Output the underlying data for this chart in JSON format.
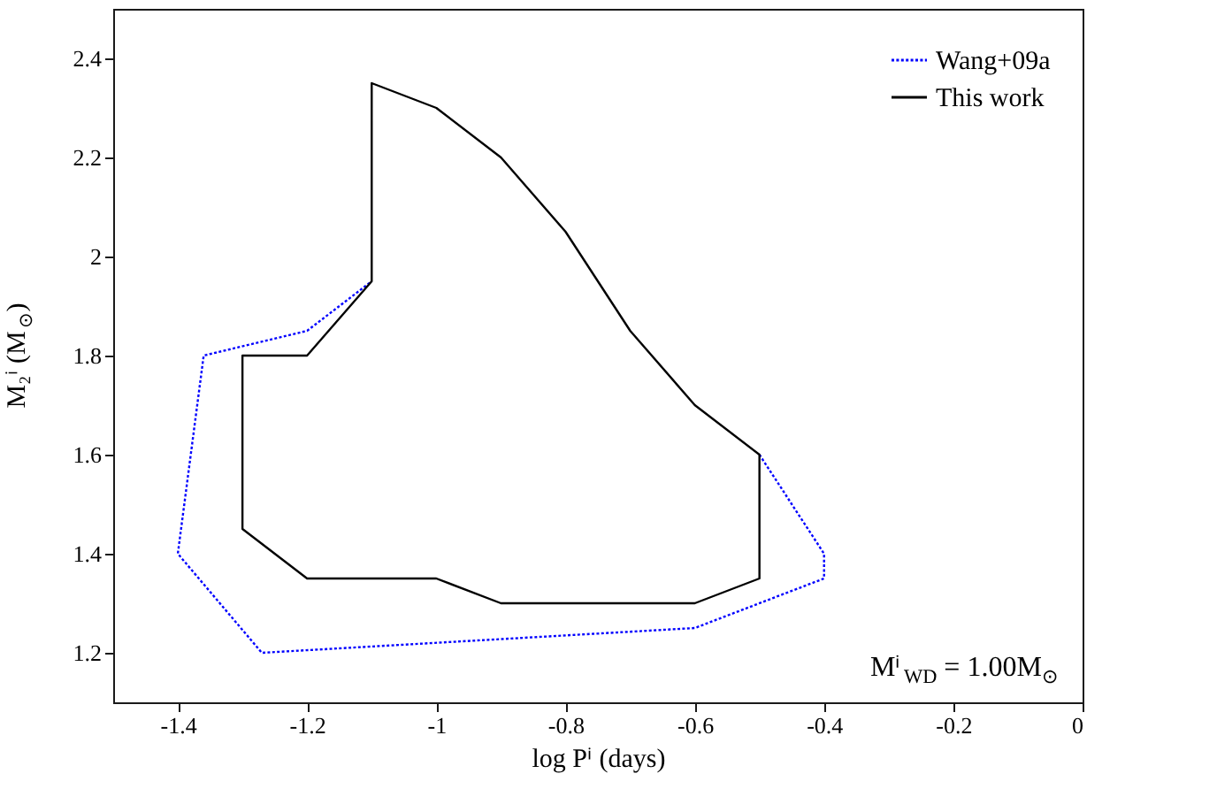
{
  "chart_data": {
    "type": "line",
    "xlabel": "log Pⁱ (days)",
    "ylabel": "M₂ⁱ (M$_{⊙}$)",
    "annotations": [
      "Mⁱ$_{WD}$ = 1.00M$_{⊙}$"
    ],
    "xlim": [
      -1.5,
      0
    ],
    "ylim": [
      1.1,
      2.5
    ],
    "xticks": [
      -1.4,
      -1.2,
      -1,
      -0.8,
      -0.6,
      -0.4,
      -0.2,
      0
    ],
    "yticks": [
      1.2,
      1.4,
      1.6,
      1.8,
      2,
      2.2,
      2.4
    ],
    "grid": false,
    "legend": "top right",
    "marker": "none",
    "series": [
      {
        "name": "Wang+09a",
        "color": "#0000ff",
        "line_style": "dotted",
        "x": [
          -0.5,
          -0.4,
          -0.4,
          -0.6,
          -1.27,
          -1.4,
          -1.36,
          -1.2,
          -1.15,
          -1.1
        ],
        "values": [
          1.6,
          1.4,
          1.35,
          1.25,
          1.2,
          1.4,
          1.8,
          1.85,
          1.9,
          1.95
        ]
      },
      {
        "name": "This work",
        "color": "#000000",
        "line_style": "solid",
        "x": [
          -1.1,
          -1.0,
          -0.9,
          -0.8,
          -0.7,
          -0.6,
          -0.5,
          -0.5,
          -0.6,
          -0.9,
          -1.0,
          -1.2,
          -1.3,
          -1.3,
          -1.2,
          -1.1,
          -1.1,
          -1.0
        ],
        "values": [
          2.35,
          2.3,
          2.2,
          2.05,
          1.85,
          1.7,
          1.6,
          1.35,
          1.3,
          1.3,
          1.35,
          1.35,
          1.45,
          1.8,
          1.8,
          1.95,
          2.35,
          2.3
        ]
      }
    ]
  }
}
